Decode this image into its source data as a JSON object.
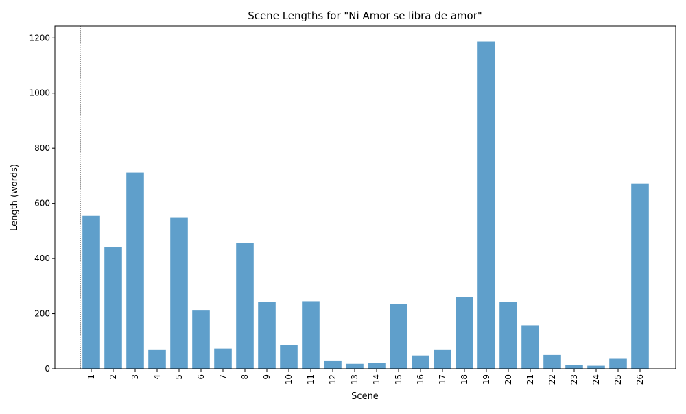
{
  "chart_data": {
    "type": "bar",
    "title": "Scene Lengths for \"Ni Amor se libra de amor\"",
    "xlabel": "Scene",
    "ylabel": "Length (words)",
    "categories": [
      "1",
      "2",
      "3",
      "4",
      "5",
      "6",
      "7",
      "8",
      "9",
      "10",
      "11",
      "12",
      "13",
      "14",
      "15",
      "16",
      "17",
      "18",
      "19",
      "20",
      "21",
      "22",
      "23",
      "24",
      "25",
      "26"
    ],
    "values": [
      555,
      440,
      712,
      70,
      548,
      211,
      73,
      456,
      242,
      85,
      245,
      30,
      18,
      20,
      235,
      48,
      70,
      260,
      1187,
      242,
      158,
      50,
      13,
      11,
      36,
      672
    ],
    "ylim": [
      0,
      1243
    ],
    "yticks": [
      0,
      200,
      400,
      600,
      800,
      1000,
      1200
    ],
    "bar_color": "#5f9fcb",
    "grid": false,
    "legend": "none",
    "reference_line": {
      "style": "dotted",
      "color": "#000000"
    }
  }
}
